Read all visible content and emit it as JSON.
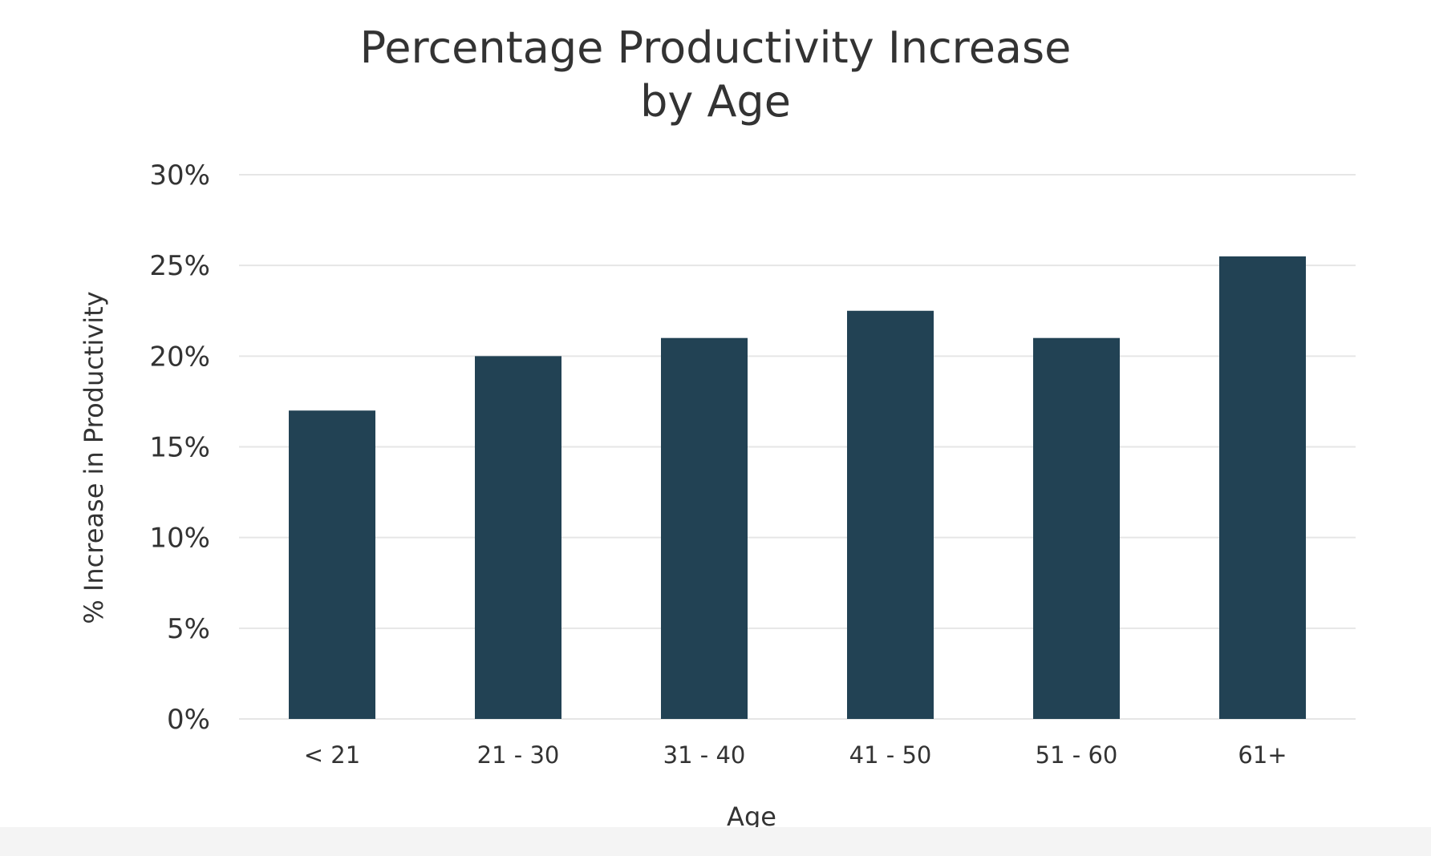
{
  "chart_data": {
    "type": "bar",
    "title_lines": [
      "Percentage Productivity Increase",
      "by Age"
    ],
    "xlabel": "Age",
    "ylabel": "% Increase in Productivity",
    "categories": [
      "< 21",
      "21 - 30",
      "31 - 40",
      "41 - 50",
      "51 - 60",
      "61+"
    ],
    "values": [
      17,
      20,
      21,
      22.5,
      21,
      25.5
    ],
    "ylim": [
      0,
      30
    ],
    "yticks": [
      0,
      5,
      10,
      15,
      20,
      25,
      30
    ],
    "ytick_labels": [
      "0%",
      "5%",
      "10%",
      "15%",
      "20%",
      "25%",
      "30%"
    ],
    "grid": true,
    "legend": "none",
    "colors": {
      "bar": "#224254",
      "grid": "#e6e6e6",
      "text": "#333333"
    }
  }
}
